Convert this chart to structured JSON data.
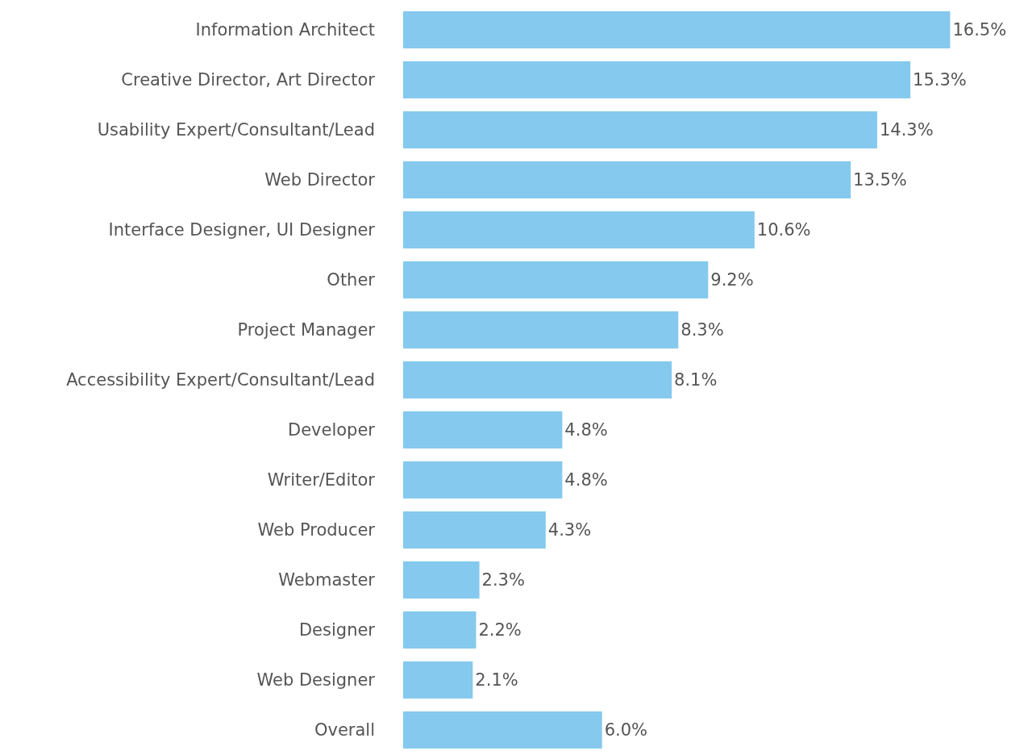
{
  "chart_data": {
    "type": "bar",
    "orientation": "horizontal",
    "categories": [
      "Information Architect",
      "Creative Director, Art Director",
      "Usability Expert/Consultant/Lead",
      "Web Director",
      "Interface Designer, UI Designer",
      "Other",
      "Project Manager",
      "Accessibility Expert/Consultant/Lead",
      "Developer",
      "Writer/Editor",
      "Web Producer",
      "Webmaster",
      "Designer",
      "Web Designer",
      "Overall"
    ],
    "values": [
      16.5,
      15.3,
      14.3,
      13.5,
      10.6,
      9.2,
      8.3,
      8.1,
      4.8,
      4.8,
      4.3,
      2.3,
      2.2,
      2.1,
      6.0
    ],
    "value_labels": [
      "16.5%",
      "15.3%",
      "14.3%",
      "13.5%",
      "10.6%",
      "9.2%",
      "8.3%",
      "8.1%",
      "4.8%",
      "4.8%",
      "4.3%",
      "2.3%",
      "2.2%",
      "2.1%",
      "6.0%"
    ],
    "color": "#85c9ee",
    "tick_labels": "y",
    "grid": false,
    "legend": false
  }
}
